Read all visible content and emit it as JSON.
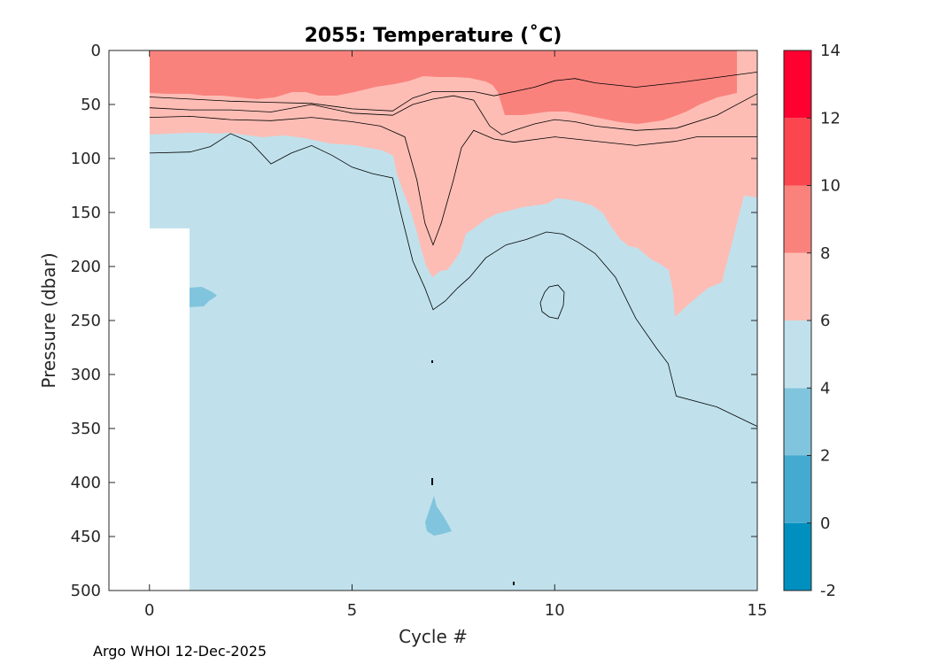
{
  "chart_data": {
    "type": "heatmap",
    "subtype": "filled-contour",
    "title": "2055:  Temperature (˚C)",
    "xlabel": "Cycle #",
    "ylabel": "Pressure (dbar)",
    "xlim": [
      -1,
      15
    ],
    "ylim": [
      0,
      500
    ],
    "y_reversed": true,
    "x_ticks": [
      0,
      5,
      10,
      15
    ],
    "y_ticks": [
      0,
      50,
      100,
      150,
      200,
      250,
      300,
      350,
      400,
      450,
      500
    ],
    "colorbar": {
      "levels": [
        -2,
        0,
        2,
        4,
        6,
        8,
        10,
        12,
        14
      ],
      "bands": [
        {
          "min": -2,
          "max": 0,
          "color": "#0090bf"
        },
        {
          "min": 0,
          "max": 2,
          "color": "#45aad0"
        },
        {
          "min": 2,
          "max": 4,
          "color": "#81c4dd"
        },
        {
          "min": 4,
          "max": 6,
          "color": "#c0e1ec"
        },
        {
          "min": 6,
          "max": 8,
          "color": "#fdbdb5"
        },
        {
          "min": 8,
          "max": 10,
          "color": "#fa827d"
        },
        {
          "min": 10,
          "max": 12,
          "color": "#fb454f"
        },
        {
          "min": 12,
          "max": 14,
          "color": "#fe0131"
        }
      ]
    },
    "no_data_regions": [
      {
        "cycles": [
          -1,
          0
        ],
        "pressure": [
          0,
          500
        ]
      },
      {
        "cycles": [
          0,
          1
        ],
        "pressure": [
          165,
          500
        ]
      }
    ],
    "contours": [
      {
        "name": "8C isotherm",
        "level": 8,
        "points": [
          [
            0,
            43
          ],
          [
            1,
            45
          ],
          [
            2,
            47
          ],
          [
            3,
            48
          ],
          [
            4,
            49
          ],
          [
            5,
            54
          ],
          [
            6,
            56
          ],
          [
            6.5,
            44
          ],
          [
            7,
            38
          ],
          [
            7.5,
            38
          ],
          [
            8,
            38
          ],
          [
            8.5,
            42
          ],
          [
            9,
            38
          ],
          [
            9.5,
            34
          ],
          [
            10,
            28
          ],
          [
            10.5,
            26
          ],
          [
            11,
            30
          ],
          [
            12,
            34
          ],
          [
            13,
            30
          ],
          [
            14,
            25
          ],
          [
            15,
            20
          ]
        ]
      },
      {
        "name": "upper 6C isotherm",
        "level": 6,
        "points": [
          [
            0,
            53
          ],
          [
            1,
            55
          ],
          [
            2,
            55
          ],
          [
            3,
            57
          ],
          [
            4,
            50
          ],
          [
            5,
            58
          ],
          [
            6,
            60
          ],
          [
            6.5,
            50
          ],
          [
            7,
            45
          ],
          [
            7.5,
            42
          ],
          [
            8,
            46
          ],
          [
            8.4,
            70
          ],
          [
            8.7,
            78
          ],
          [
            9,
            74
          ],
          [
            9.5,
            68
          ],
          [
            10,
            64
          ],
          [
            10.5,
            66
          ],
          [
            11,
            70
          ],
          [
            12,
            74
          ],
          [
            13,
            72
          ],
          [
            14,
            60
          ],
          [
            15,
            40
          ]
        ]
      },
      {
        "name": "lower 6C isotherm",
        "level": 6,
        "points": [
          [
            0,
            62
          ],
          [
            1,
            61
          ],
          [
            2,
            64
          ],
          [
            3,
            65
          ],
          [
            4,
            62
          ],
          [
            5,
            66
          ],
          [
            5.7,
            70
          ],
          [
            6,
            75
          ],
          [
            6.3,
            80
          ],
          [
            6.6,
            120
          ],
          [
            6.8,
            160
          ],
          [
            7,
            180
          ],
          [
            7.2,
            160
          ],
          [
            7.5,
            120
          ],
          [
            7.7,
            90
          ],
          [
            8,
            74
          ],
          [
            8.5,
            82
          ],
          [
            9,
            85
          ],
          [
            10,
            80
          ],
          [
            11,
            84
          ],
          [
            12,
            88
          ],
          [
            13,
            84
          ],
          [
            13.5,
            80
          ],
          [
            14,
            80
          ],
          [
            15,
            80
          ]
        ]
      },
      {
        "name": "main 6/4C boundary",
        "level": 4,
        "points": [
          [
            0,
            95
          ],
          [
            1,
            94
          ],
          [
            1.5,
            89
          ],
          [
            2,
            77
          ],
          [
            2.5,
            85
          ],
          [
            3,
            105
          ],
          [
            3.5,
            95
          ],
          [
            4,
            88
          ],
          [
            4.5,
            97
          ],
          [
            5,
            108
          ],
          [
            5.5,
            114
          ],
          [
            6,
            118
          ],
          [
            6.2,
            150
          ],
          [
            6.5,
            195
          ],
          [
            6.8,
            220
          ],
          [
            7,
            240
          ],
          [
            7.3,
            232
          ],
          [
            7.6,
            220
          ],
          [
            7.9,
            210
          ],
          [
            8.3,
            192
          ],
          [
            8.8,
            180
          ],
          [
            9.3,
            175
          ],
          [
            9.8,
            168
          ],
          [
            10.2,
            170
          ],
          [
            10.6,
            178
          ],
          [
            11,
            188
          ],
          [
            11.5,
            210
          ],
          [
            12,
            248
          ],
          [
            12.5,
            275
          ],
          [
            12.8,
            290
          ],
          [
            13,
            320
          ],
          [
            14,
            330
          ],
          [
            15,
            348
          ]
        ]
      }
    ],
    "annotations": [
      {
        "text": "Argo WHOI 12-Dec-2025",
        "position": "bottom-left"
      }
    ]
  }
}
